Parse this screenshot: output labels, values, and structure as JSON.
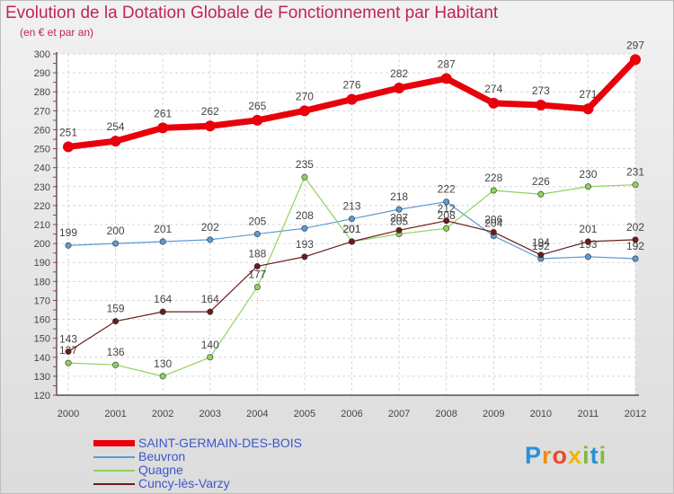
{
  "header": {
    "title": "Evolution de la Dotation Globale de Fonctionnement par Habitant",
    "subtitle": "(en € et par an)"
  },
  "logo": {
    "letters": [
      {
        "ch": "P",
        "color": "#2b8fd6"
      },
      {
        "ch": "r",
        "color": "#f08a1c"
      },
      {
        "ch": "o",
        "color": "#e94b2c"
      },
      {
        "ch": "x",
        "color": "#f4b400"
      },
      {
        "ch": "i",
        "color": "#7cbf3a"
      },
      {
        "ch": "t",
        "color": "#2b8fd6"
      },
      {
        "ch": "i",
        "color": "#7cbf3a"
      }
    ]
  },
  "chart_data": {
    "type": "line",
    "title": "Evolution de la Dotation Globale de Fonctionnement par Habitant",
    "subtitle": "(en € et par an)",
    "x": [
      "2000",
      "2001",
      "2002",
      "2003",
      "2004",
      "2005",
      "2006",
      "2007",
      "2008",
      "2009",
      "2010",
      "2011",
      "2012"
    ],
    "ylim": [
      120,
      300
    ],
    "yticks": [
      120,
      130,
      140,
      150,
      160,
      170,
      180,
      190,
      200,
      210,
      220,
      230,
      240,
      250,
      260,
      270,
      280,
      290,
      300
    ],
    "grid": true,
    "legend_position": "bottom-left",
    "series": [
      {
        "name": "SAINT-GERMAIN-DES-BOIS",
        "color": "#e8000b",
        "values": [
          251,
          254,
          261,
          262,
          265,
          270,
          276,
          282,
          287,
          274,
          273,
          271,
          297
        ]
      },
      {
        "name": "Beuvron",
        "color": "#5b9bd5",
        "values": [
          199,
          200,
          201,
          202,
          205,
          208,
          213,
          218,
          222,
          204,
          192,
          193,
          192
        ]
      },
      {
        "name": "Quagne",
        "color": "#8fd35a",
        "values": [
          137,
          136,
          130,
          140,
          177,
          235,
          201,
          205,
          208,
          228,
          226,
          230,
          231
        ]
      },
      {
        "name": "Cuncy-lès-Varzy",
        "color": "#6b1c1c",
        "values": [
          143,
          159,
          164,
          164,
          188,
          193,
          201,
          207,
          212,
          206,
          194,
          201,
          202
        ]
      }
    ]
  }
}
